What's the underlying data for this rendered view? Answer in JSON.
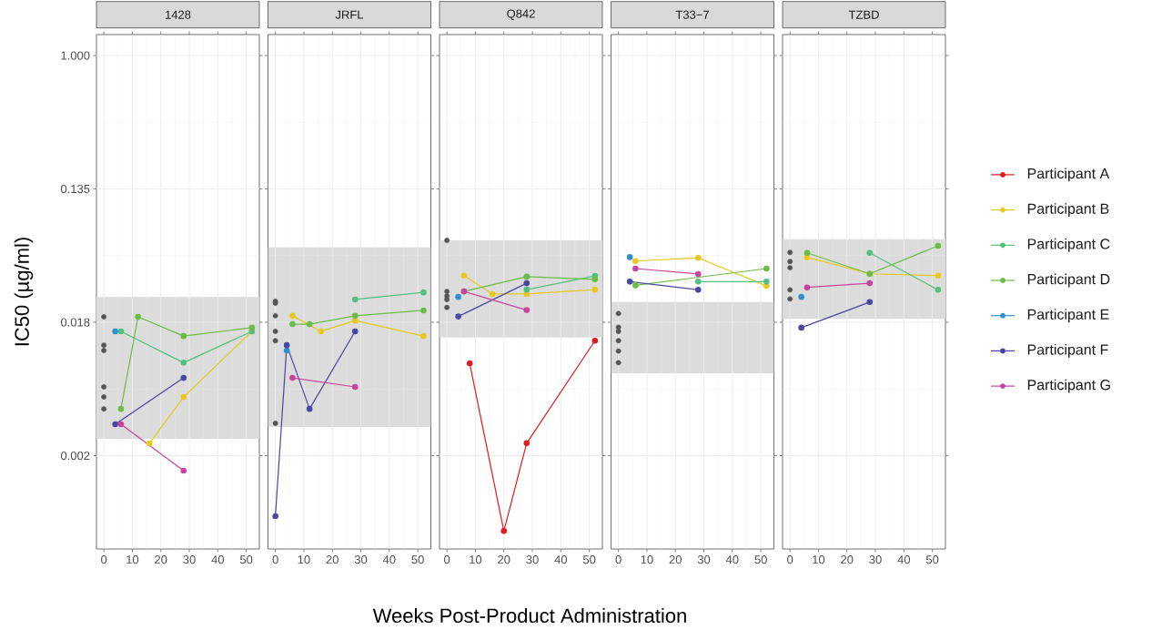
{
  "chart_data": [
    {
      "type": "line",
      "title": "1428",
      "ylabel": "IC50 (µg/ml)",
      "log": "y",
      "grid": true,
      "marker": "circle",
      "line_style": "solid",
      "xlim": [
        -2.6,
        54.6
      ],
      "xticks": [
        0,
        10,
        20,
        30,
        40,
        50
      ],
      "ylim": [
        0.000612,
        1.369
      ],
      "yticks": [
        {
          "value": 0.002479,
          "label": "0.002"
        },
        {
          "value": 0.01832,
          "label": "0.018"
        },
        {
          "value": 0.1353,
          "label": "0.135"
        },
        {
          "value": 1,
          "label": "1.000"
        }
      ],
      "bands": [
        {
          "axis": "y",
          "from": 0.00319,
          "to": 0.0268,
          "color": "#dcdcdc"
        }
      ],
      "series": [
        {
          "type": "scatter",
          "color": "#555555",
          "x": [
            0,
            0,
            0,
            0,
            0,
            0
          ],
          "values": [
            0.0199,
            0.013,
            0.012,
            0.00695,
            0.00598,
            0.005
          ]
        },
        {
          "color": "#e9c81c",
          "x": [
            16,
            28,
            52
          ],
          "values": [
            0.00298,
            0.00598,
            0.016
          ]
        },
        {
          "color": "#52c07f",
          "x": [
            6,
            28,
            52
          ],
          "values": [
            0.016,
            0.01,
            0.016
          ]
        },
        {
          "color": "#6abd45",
          "x": [
            6,
            12,
            28,
            52
          ],
          "values": [
            0.005,
            0.0199,
            0.0149,
            0.0169
          ]
        },
        {
          "color": "#2f8fd0",
          "x": [
            4
          ],
          "values": [
            0.016
          ]
        },
        {
          "color": "#4a46a3",
          "x": [
            4,
            28
          ],
          "values": [
            0.00397,
            0.00796
          ]
        },
        {
          "color": "#c9449c",
          "x": [
            6,
            28
          ],
          "values": [
            0.00397,
            0.00198
          ]
        }
      ]
    },
    {
      "type": "line",
      "title": "JRFL",
      "log": "y",
      "grid": true,
      "marker": "circle",
      "line_style": "solid",
      "tick_labels": "x",
      "xlim": [
        -2.6,
        54.6
      ],
      "xticks": [
        0,
        10,
        20,
        30,
        40,
        50
      ],
      "ylim": [
        0.000612,
        1.369
      ],
      "yticks": [
        {
          "value": 0.002479,
          "label": null
        },
        {
          "value": 0.01832,
          "label": null
        },
        {
          "value": 0.1353,
          "label": null
        },
        {
          "value": 1,
          "label": null
        }
      ],
      "bands": [
        {
          "axis": "y",
          "from": 0.00381,
          "to": 0.0564,
          "color": "#dcdcdc"
        }
      ],
      "series": [
        {
          "type": "scatter",
          "color": "#555555",
          "x": [
            0,
            0,
            0,
            0,
            0,
            0
          ],
          "values": [
            0.0251,
            0.0244,
            0.0202,
            0.016,
            0.0139,
            0.00403
          ]
        },
        {
          "color": "#e9c81c",
          "x": [
            6,
            16,
            28,
            52
          ],
          "values": [
            0.0202,
            0.016,
            0.0188,
            0.0149
          ]
        },
        {
          "color": "#52c07f",
          "x": [
            28,
            52
          ],
          "values": [
            0.0258,
            0.0287
          ]
        },
        {
          "color": "#6abd45",
          "x": [
            6,
            12,
            28,
            52
          ],
          "values": [
            0.0178,
            0.0178,
            0.0202,
            0.0219
          ]
        },
        {
          "color": "#2f8fd0",
          "x": [
            4
          ],
          "values": [
            0.012
          ]
        },
        {
          "color": "#4a46a3",
          "x": [
            0,
            4,
            12,
            28
          ],
          "values": [
            0.001,
            0.013,
            0.005,
            0.016
          ]
        },
        {
          "color": "#c9449c",
          "x": [
            6,
            28
          ],
          "values": [
            0.00796,
            0.00695
          ]
        }
      ]
    },
    {
      "type": "line",
      "title": "Q842",
      "xlabel": "Weeks Post-Product Administration",
      "log": "y",
      "grid": true,
      "marker": "circle",
      "line_style": "solid",
      "tick_labels": "x",
      "legend": "right",
      "xlim": [
        -2.6,
        54.6
      ],
      "xticks": [
        0,
        10,
        20,
        30,
        40,
        50
      ],
      "ylim": [
        0.000612,
        1.369
      ],
      "yticks": [
        {
          "value": 0.002479,
          "label": null
        },
        {
          "value": 0.01832,
          "label": null
        },
        {
          "value": 0.1353,
          "label": null
        },
        {
          "value": 1,
          "label": null
        }
      ],
      "bands": [
        {
          "axis": "y",
          "from": 0.0146,
          "to": 0.0626,
          "color": "#dcdcdc"
        }
      ],
      "series": [
        {
          "type": "scatter",
          "color": "#555555",
          "x": [
            0,
            0,
            0,
            0,
            0
          ],
          "values": [
            0.0626,
            0.0291,
            0.0272,
            0.0258,
            0.0229
          ]
        },
        {
          "name": "Participant A",
          "color": "#e41a1c",
          "x": [
            8,
            20,
            28,
            52
          ],
          "values": [
            0.00991,
            0.000801,
            0.00299,
            0.0139
          ]
        },
        {
          "name": "Participant B",
          "color": "#e9c81c",
          "x": [
            6,
            16,
            28,
            52
          ],
          "values": [
            0.0369,
            0.028,
            0.028,
            0.0299
          ]
        },
        {
          "name": "Participant C",
          "color": "#52c07f",
          "x": [
            28,
            52
          ],
          "values": [
            0.0299,
            0.0367
          ]
        },
        {
          "name": "Participant D",
          "color": "#6abd45",
          "x": [
            6,
            28,
            52
          ],
          "values": [
            0.0291,
            0.0363,
            0.0349
          ]
        },
        {
          "name": "Participant E",
          "color": "#2f8fd0",
          "x": [
            4
          ],
          "values": [
            0.0268
          ]
        },
        {
          "name": "Participant F",
          "color": "#4a46a3",
          "x": [
            4,
            28
          ],
          "values": [
            0.02,
            0.0329
          ]
        },
        {
          "name": "Participant G",
          "color": "#c9449c",
          "x": [
            6,
            28
          ],
          "values": [
            0.0291,
            0.022
          ]
        }
      ]
    },
    {
      "type": "line",
      "title": "T33−7",
      "log": "y",
      "grid": true,
      "marker": "circle",
      "line_style": "solid",
      "tick_labels": "x",
      "xlim": [
        -2.6,
        54.6
      ],
      "xticks": [
        0,
        10,
        20,
        30,
        40,
        50
      ],
      "ylim": [
        0.000612,
        1.369
      ],
      "yticks": [
        {
          "value": 0.002479,
          "label": null
        },
        {
          "value": 0.01832,
          "label": null
        },
        {
          "value": 0.1353,
          "label": null
        },
        {
          "value": 1,
          "label": null
        }
      ],
      "bands": [
        {
          "axis": "y",
          "from": 0.00853,
          "to": 0.0248,
          "color": "#dcdcdc"
        }
      ],
      "series": [
        {
          "type": "scatter",
          "color": "#555555",
          "x": [
            0,
            0,
            0,
            0,
            0,
            0
          ],
          "values": [
            0.0209,
            0.017,
            0.016,
            0.0139,
            0.0119,
            0.01
          ]
        },
        {
          "color": "#e9c81c",
          "x": [
            6,
            28,
            52
          ],
          "values": [
            0.0459,
            0.0481,
            0.0316
          ]
        },
        {
          "color": "#52c07f",
          "x": [
            28,
            52
          ],
          "values": [
            0.0337,
            0.0337
          ]
        },
        {
          "color": "#6abd45",
          "x": [
            6,
            52
          ],
          "values": [
            0.0319,
            0.041
          ]
        },
        {
          "color": "#2f8fd0",
          "x": [
            4
          ],
          "values": [
            0.0487
          ]
        },
        {
          "color": "#4a46a3",
          "x": [
            4,
            28
          ],
          "values": [
            0.0337,
            0.0298
          ]
        },
        {
          "color": "#c9449c",
          "x": [
            6,
            28
          ],
          "values": [
            0.041,
            0.0378
          ]
        }
      ]
    },
    {
      "type": "line",
      "title": "TZBD",
      "log": "y",
      "grid": true,
      "marker": "circle",
      "line_style": "solid",
      "tick_labels": "x",
      "xlim": [
        -2.6,
        54.6
      ],
      "xticks": [
        0,
        10,
        20,
        30,
        40,
        50
      ],
      "ylim": [
        0.000612,
        1.369
      ],
      "yticks": [
        {
          "value": 0.002479,
          "label": null
        },
        {
          "value": 0.01832,
          "label": null
        },
        {
          "value": 0.1353,
          "label": null
        },
        {
          "value": 1,
          "label": null
        }
      ],
      "bands": [
        {
          "axis": "y",
          "from": 0.0193,
          "to": 0.0637,
          "color": "#dcdcdc"
        }
      ],
      "series": [
        {
          "type": "scatter",
          "color": "#555555",
          "x": [
            0,
            0,
            0,
            0,
            0
          ],
          "values": [
            0.0522,
            0.0456,
            0.0415,
            0.0298,
            0.026
          ]
        },
        {
          "color": "#e9c81c",
          "x": [
            6,
            28,
            52
          ],
          "values": [
            0.0485,
            0.0379,
            0.0369
          ]
        },
        {
          "color": "#52c07f",
          "x": [
            28,
            52
          ],
          "values": [
            0.0519,
            0.0298
          ]
        },
        {
          "color": "#6abd45",
          "x": [
            6,
            28,
            52
          ],
          "values": [
            0.0519,
            0.0379,
            0.0577
          ]
        },
        {
          "color": "#2f8fd0",
          "x": [
            4
          ],
          "values": [
            0.0268
          ]
        },
        {
          "color": "#4a46a3",
          "x": [
            4,
            28
          ],
          "values": [
            0.0169,
            0.0248
          ]
        },
        {
          "color": "#c9449c",
          "x": [
            6,
            28
          ],
          "values": [
            0.0309,
            0.0329
          ]
        }
      ]
    }
  ]
}
